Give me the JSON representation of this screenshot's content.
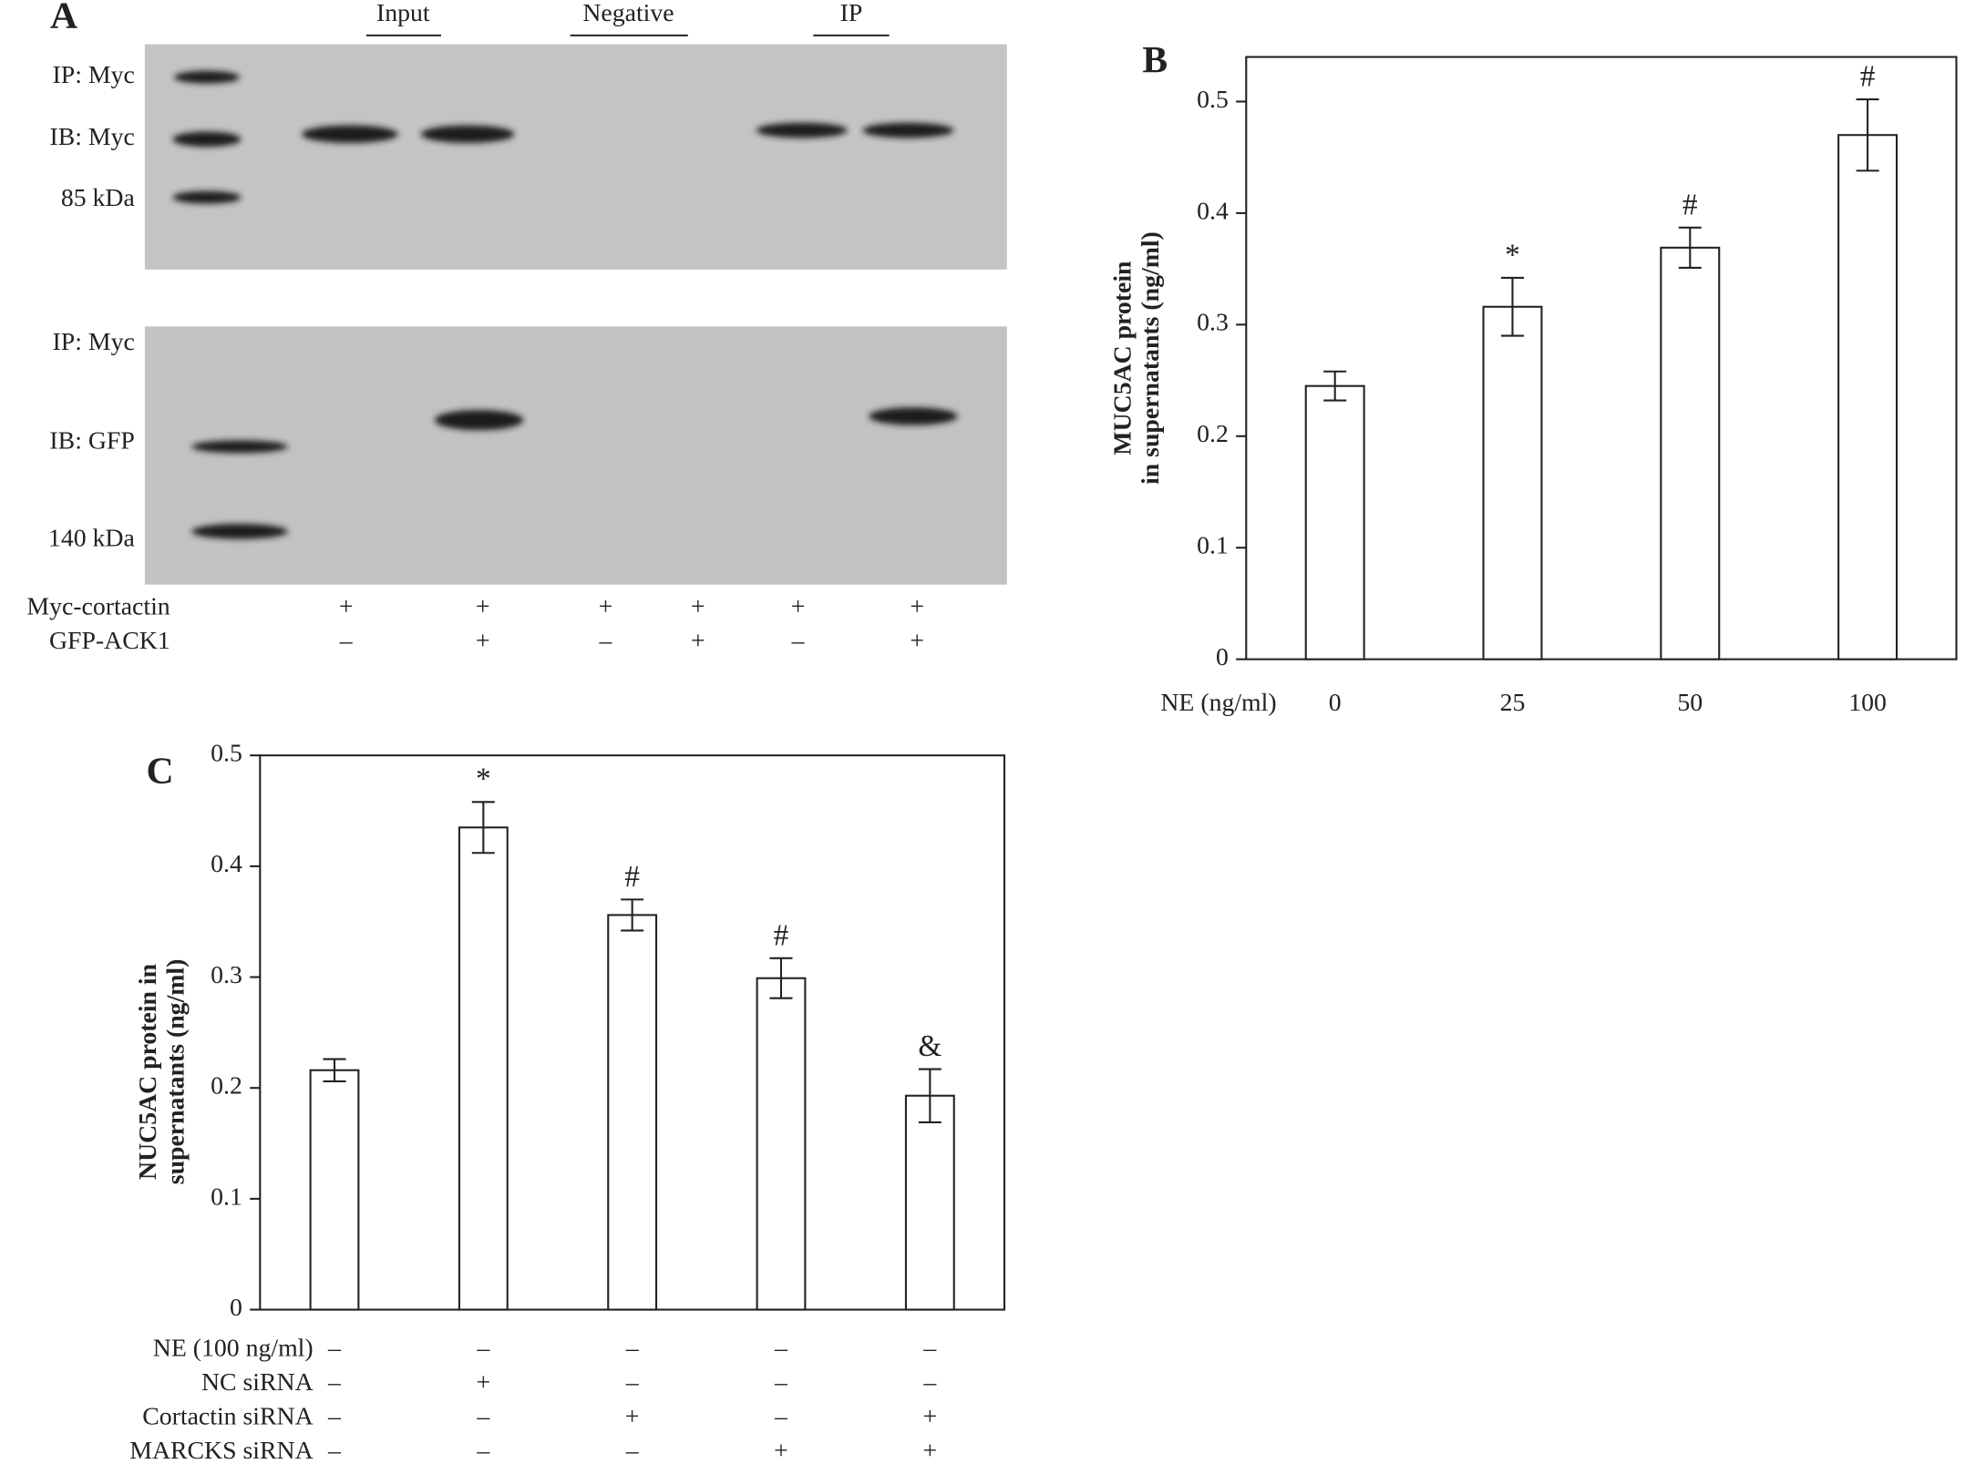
{
  "panel_a": {
    "label": "A",
    "groups": [
      "Input",
      "Negative",
      "IP"
    ],
    "top_blot_labels": [
      "IP: Myc",
      "IB: Myc",
      "85 kDa"
    ],
    "bottom_blot_labels": [
      "IP: Myc",
      "IB: GFP",
      "140 kDa"
    ],
    "conditions": [
      {
        "name": "Myc-cortactin",
        "values": [
          "+",
          "+",
          "+",
          "+",
          "+",
          "+"
        ]
      },
      {
        "name": "GFP-ACK1",
        "values": [
          "–",
          "+",
          "–",
          "+",
          "–",
          "+"
        ]
      }
    ]
  },
  "chart_data": [
    {
      "type": "bar",
      "title": "B",
      "ylabel": [
        "MUC5AC protein",
        "in supernatants (ng/ml)"
      ],
      "xlabel": "NE (ng/ml)",
      "categories": [
        "0",
        "25",
        "50",
        "100"
      ],
      "values": [
        0.245,
        0.316,
        0.369,
        0.47
      ],
      "errors": [
        0.013,
        0.026,
        0.018,
        0.032
      ],
      "annotations": [
        null,
        "*",
        "#",
        "#"
      ],
      "color": "#ffffff",
      "ylim": [
        0,
        0.54
      ],
      "yticks": [
        0,
        0.1,
        0.2,
        0.3,
        0.4,
        0.5
      ]
    },
    {
      "type": "bar",
      "title": "C",
      "ylabel": [
        "NUC5AC protein in",
        "supernatants (ng/ml)"
      ],
      "categories": [
        null,
        null,
        null,
        null,
        null
      ],
      "values": [
        0.216,
        0.435,
        0.356,
        0.299,
        0.193
      ],
      "errors": [
        0.01,
        0.023,
        0.014,
        0.018,
        0.024
      ],
      "annotations": [
        null,
        "*",
        "#",
        "#",
        "&"
      ],
      "color": "#ffffff",
      "ylim": [
        0,
        0.5
      ],
      "yticks": [
        0,
        0.1,
        0.2,
        0.3,
        0.4,
        0.5
      ],
      "conditions": [
        {
          "name": "NE (100 ng/ml)",
          "values": [
            "–",
            "–",
            "–",
            "–",
            "–"
          ]
        },
        {
          "name": "NC siRNA",
          "values": [
            "–",
            "+",
            "–",
            "–",
            "–"
          ]
        },
        {
          "name": "Cortactin siRNA",
          "values": [
            "–",
            "–",
            "+",
            "–",
            "+"
          ]
        },
        {
          "name": "MARCKS siRNA",
          "values": [
            "–",
            "–",
            "–",
            "+",
            "+"
          ]
        }
      ]
    }
  ]
}
